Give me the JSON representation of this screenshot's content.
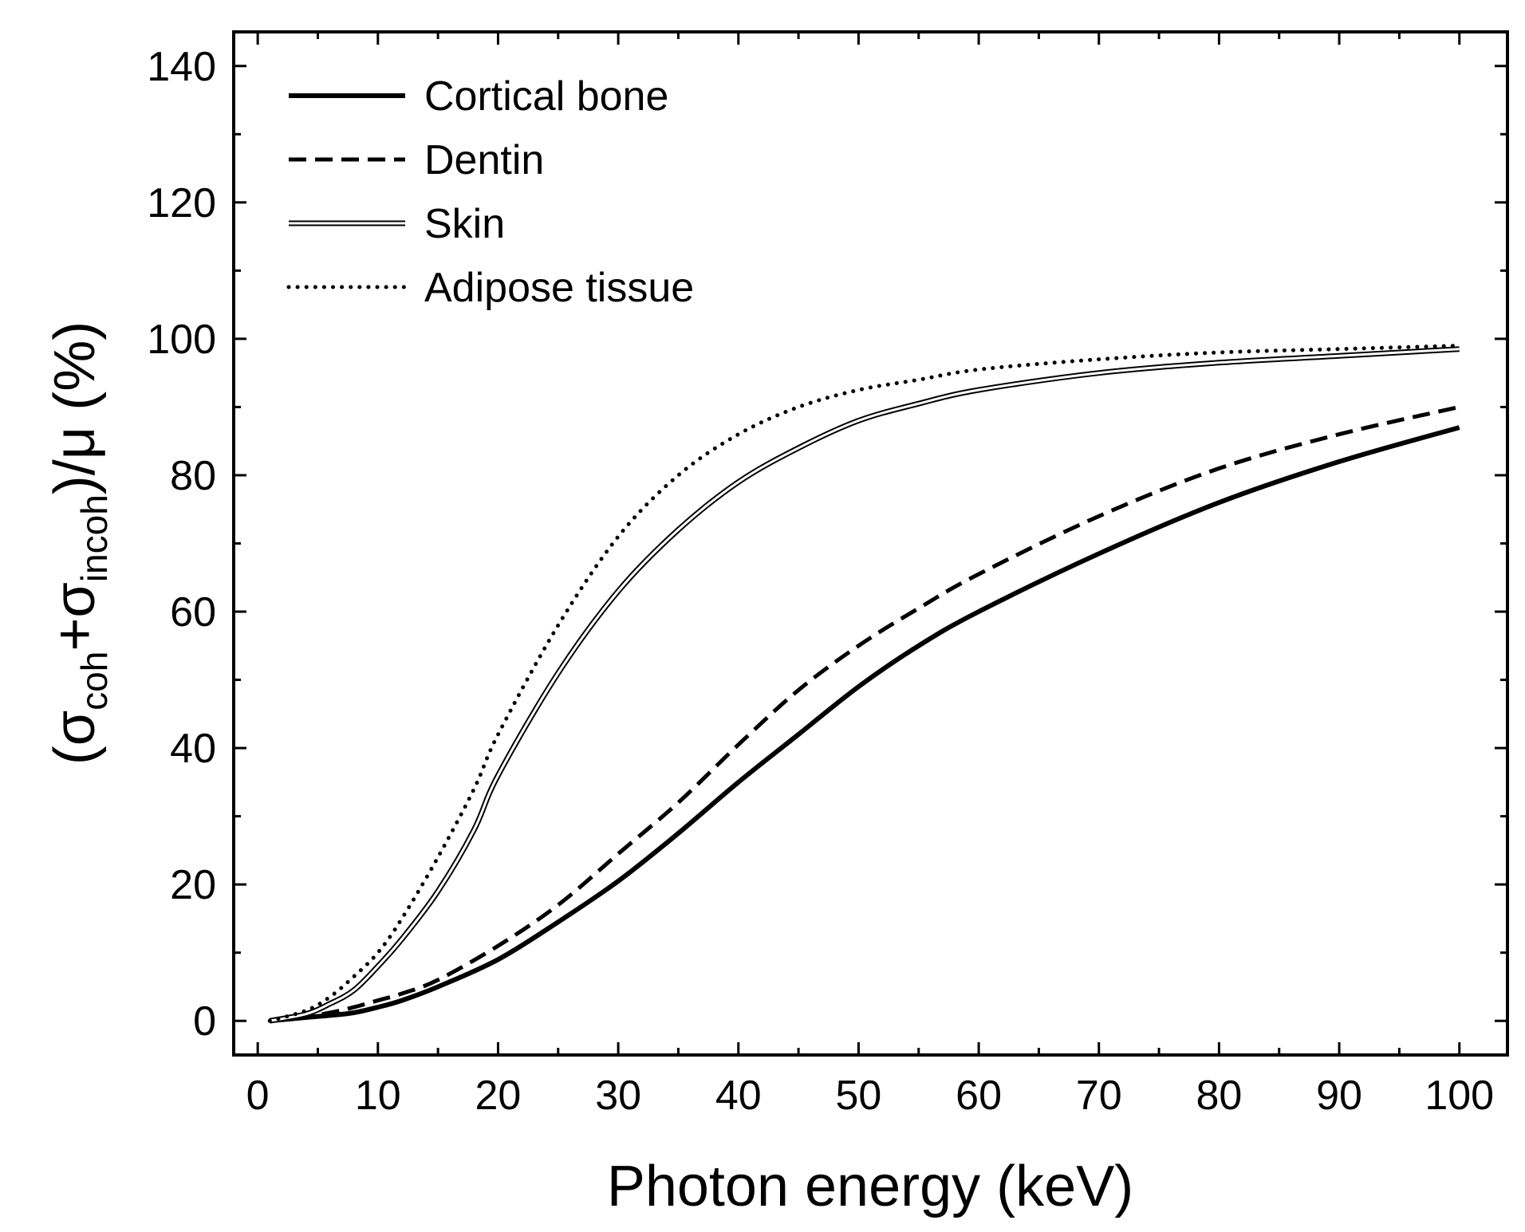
{
  "chart_data": {
    "type": "line",
    "title": "",
    "xlabel": "Photon energy (keV)",
    "ylabel": {
      "open_paren": "(",
      "sigma1": "σ",
      "sub1": "coh",
      "plus": "+",
      "sigma2": "σ",
      "sub2": "incoh",
      "rest": ")/μ (%)"
    },
    "xlim": [
      -2,
      104
    ],
    "ylim": [
      -5,
      145
    ],
    "xticks": [
      0,
      10,
      20,
      30,
      40,
      50,
      60,
      70,
      80,
      90,
      100
    ],
    "yticks": [
      0,
      20,
      40,
      60,
      80,
      100,
      120,
      140
    ],
    "legend_position": "top-left",
    "series": [
      {
        "name": "Cortical bone",
        "style": "solid-thick",
        "x": [
          1,
          4,
          6,
          8,
          10,
          12,
          15,
          20,
          25,
          30,
          35,
          40,
          45,
          50,
          55,
          60,
          70,
          80,
          90,
          100
        ],
        "y": [
          0,
          0.5,
          0.8,
          1.2,
          2,
          3,
          5,
          9,
          14.5,
          20.5,
          27.5,
          35,
          42,
          49,
          55,
          60,
          68.5,
          76,
          82,
          87
        ]
      },
      {
        "name": "Dentin",
        "style": "dashed",
        "x": [
          1,
          4,
          6,
          8,
          10,
          12,
          15,
          20,
          25,
          30,
          35,
          40,
          45,
          50,
          55,
          60,
          70,
          80,
          90,
          100
        ],
        "y": [
          0,
          0.6,
          1.2,
          2,
          3,
          4,
          6,
          11,
          17,
          24.5,
          32,
          40.5,
          48.5,
          55,
          60.5,
          65.5,
          74,
          81,
          86,
          90
        ]
      },
      {
        "name": "Skin",
        "style": "double",
        "x": [
          1,
          4,
          6,
          8,
          10,
          12,
          15,
          18,
          20,
          25,
          30,
          35,
          40,
          45,
          50,
          55,
          60,
          70,
          80,
          90,
          100
        ],
        "y": [
          0,
          1,
          2.5,
          4.5,
          8,
          12,
          19,
          28,
          36,
          51,
          63,
          72,
          79,
          84,
          88,
          90.5,
          92.5,
          95,
          96.5,
          97.5,
          98.5
        ]
      },
      {
        "name": "Adipose tissue",
        "style": "dotted",
        "x": [
          1,
          4,
          6,
          8,
          10,
          12,
          15,
          18,
          20,
          25,
          30,
          35,
          40,
          45,
          50,
          55,
          60,
          70,
          80,
          90,
          100
        ],
        "y": [
          0,
          1.5,
          3.5,
          6.5,
          10,
          15,
          24,
          34,
          42,
          58,
          71,
          80,
          86,
          90,
          92.5,
          94,
          95.5,
          97,
          98,
          98.5,
          99
        ]
      }
    ]
  }
}
